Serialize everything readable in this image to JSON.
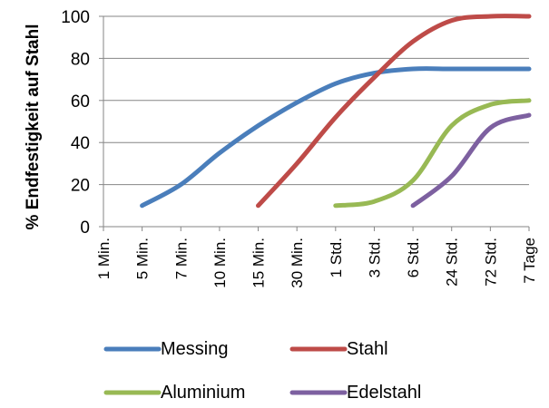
{
  "chart_data": {
    "type": "line",
    "title": "",
    "xlabel": "",
    "ylabel": "% Endfestigkeit auf Stahl",
    "ylim": [
      0,
      100
    ],
    "yticks": [
      0,
      20,
      40,
      60,
      80,
      100
    ],
    "grid": "horizontal",
    "legend_position": "bottom",
    "categories": [
      "1 Min.",
      "5 Min.",
      "7 Min.",
      "10 Min.",
      "15 Min.",
      "30 Min.",
      "1 Std.",
      "3 Std.",
      "6 Std.",
      "24 Std.",
      "72 Std.",
      "7 Tage"
    ],
    "series": [
      {
        "name": "Messing",
        "color": "#4a7ebb",
        "values": [
          null,
          10,
          20,
          35,
          48,
          59,
          68,
          73,
          75,
          75,
          75,
          75
        ]
      },
      {
        "name": "Stahl",
        "color": "#be4b48",
        "values": [
          null,
          null,
          null,
          null,
          10,
          30,
          52,
          71,
          88,
          98,
          100,
          100
        ]
      },
      {
        "name": "Aluminium",
        "color": "#98b954",
        "values": [
          null,
          null,
          null,
          null,
          null,
          null,
          10,
          12,
          22,
          48,
          58,
          60
        ]
      },
      {
        "name": "Edelstahl",
        "color": "#7d60a0",
        "values": [
          null,
          null,
          null,
          null,
          null,
          null,
          null,
          null,
          10,
          24,
          47,
          53
        ]
      }
    ]
  }
}
